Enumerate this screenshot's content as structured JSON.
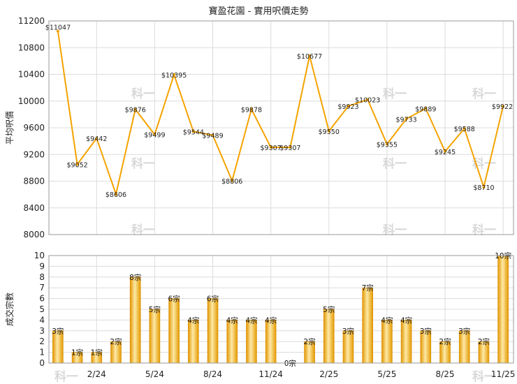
{
  "title": "寶盈花園 - 實用呎價走勢",
  "colors": {
    "line": "#f5a300",
    "bar_light": "#fde7a0",
    "bar_dark": "#e49a00",
    "bar_mid": "#f7b92a"
  },
  "chart_data": [
    {
      "type": "line",
      "ylabel": "平均呎價",
      "ylim": [
        8000,
        11200
      ],
      "yticks": [
        8000,
        8400,
        8800,
        9200,
        9600,
        10000,
        10400,
        10800,
        11200
      ],
      "grid": true,
      "values": [
        11047,
        9052,
        9442,
        8606,
        9876,
        9499,
        10395,
        9544,
        9489,
        8806,
        9878,
        9307,
        9307,
        10677,
        9550,
        9923,
        10023,
        9355,
        9733,
        9889,
        9245,
        9588,
        8710,
        9922
      ],
      "labels": [
        "$11047",
        "$9052",
        "$9442",
        "$8606",
        "$9876",
        "$9499",
        "$10395",
        "$9544",
        "$9489",
        "$8806",
        "$9878",
        "$9307",
        "$9307",
        "$10677",
        "$9550",
        "$9923",
        "$10023",
        "$9355",
        "$9733",
        "$9889",
        "$9245",
        "$9588",
        "$8710",
        "$9922"
      ]
    },
    {
      "type": "bar",
      "ylabel": "成交宗數",
      "ylim": [
        0,
        10
      ],
      "yticks": [
        0,
        1,
        2,
        3,
        4,
        5,
        6,
        7,
        8,
        9,
        10
      ],
      "grid": true,
      "values": [
        3,
        1,
        1,
        2,
        8,
        5,
        6,
        4,
        6,
        4,
        4,
        4,
        0,
        2,
        5,
        3,
        7,
        4,
        4,
        3,
        2,
        3,
        2,
        10
      ],
      "labels": [
        "3宗",
        "1宗",
        "1宗",
        "2宗",
        "8宗",
        "5宗",
        "6宗",
        "4宗",
        "6宗",
        "4宗",
        "4宗",
        "4宗",
        "0宗",
        "2宗",
        "5宗",
        "3宗",
        "7宗",
        "4宗",
        "4宗",
        "3宗",
        "2宗",
        "3宗",
        "2宗",
        "10宗"
      ]
    }
  ],
  "x_ticks": [
    {
      "index": 2,
      "label": "2/24"
    },
    {
      "index": 5,
      "label": "5/24"
    },
    {
      "index": 8,
      "label": "8/24"
    },
    {
      "index": 11,
      "label": "11/24"
    },
    {
      "index": 14,
      "label": "2/25"
    },
    {
      "index": 17,
      "label": "5/25"
    },
    {
      "index": 20,
      "label": "8/25"
    },
    {
      "index": 23,
      "label": "11/25"
    }
  ]
}
